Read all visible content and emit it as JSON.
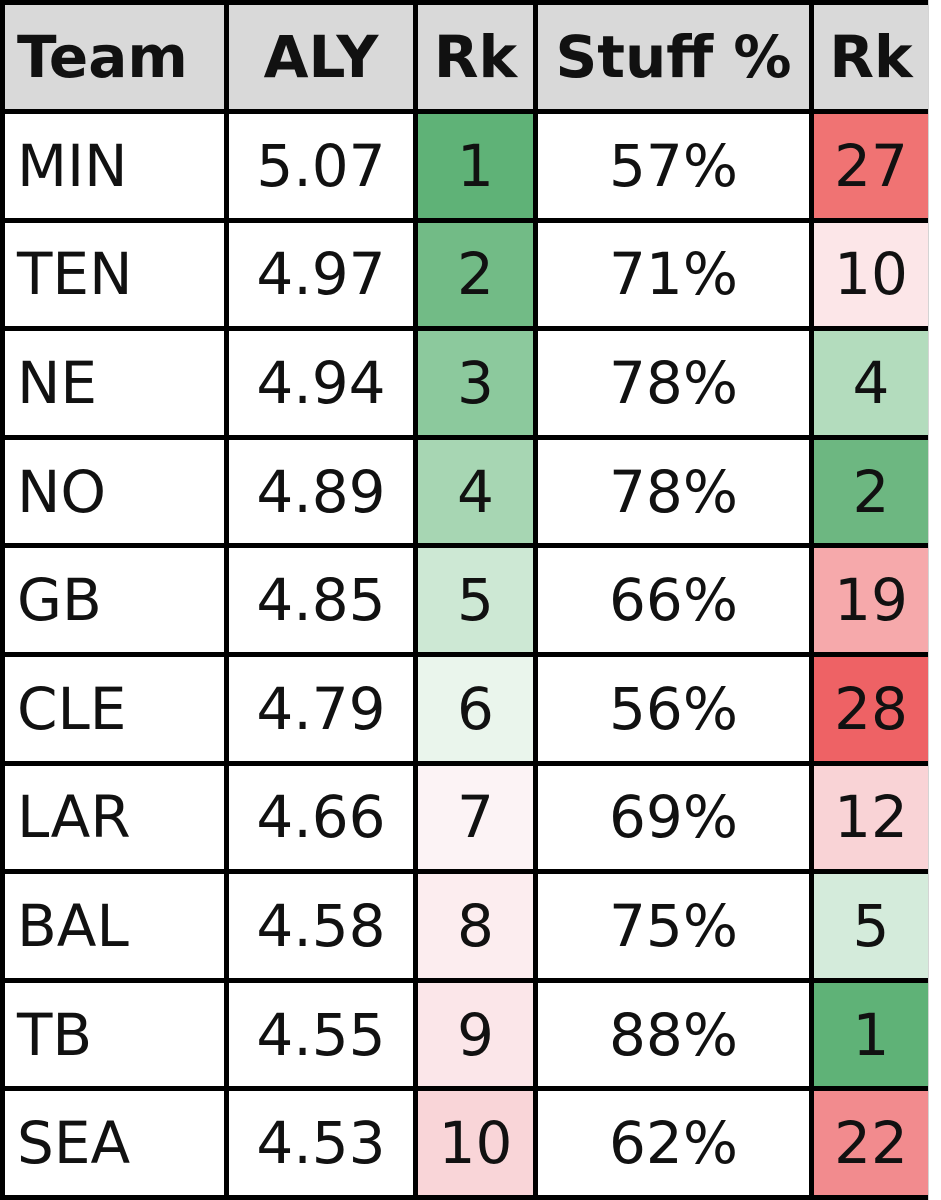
{
  "headers": [
    "Team",
    "ALY",
    "Rk",
    "Stuff %",
    "Rk"
  ],
  "rows": [
    {
      "team": "MIN",
      "aly": "5.07",
      "aly_rk": "1",
      "stuff": "57%",
      "stuff_rk": "27",
      "aly_rk_color": "#5fb277",
      "stuff_rk_color": "#f07373"
    },
    {
      "team": "TEN",
      "aly": "4.97",
      "aly_rk": "2",
      "stuff": "71%",
      "stuff_rk": "10",
      "aly_rk_color": "#72bb86",
      "stuff_rk_color": "#fce6e8"
    },
    {
      "team": "NE",
      "aly": "4.94",
      "aly_rk": "3",
      "stuff": "78%",
      "stuff_rk": "4",
      "aly_rk_color": "#8cc99d",
      "stuff_rk_color": "#b3dcbd"
    },
    {
      "team": "NO",
      "aly": "4.89",
      "aly_rk": "4",
      "stuff": "78%",
      "stuff_rk": "2",
      "aly_rk_color": "#a7d6b3",
      "stuff_rk_color": "#6db781"
    },
    {
      "team": "GB",
      "aly": "4.85",
      "aly_rk": "5",
      "stuff": "66%",
      "stuff_rk": "19",
      "aly_rk_color": "#cde8d4",
      "stuff_rk_color": "#f6a9ab"
    },
    {
      "team": "CLE",
      "aly": "4.79",
      "aly_rk": "6",
      "stuff": "56%",
      "stuff_rk": "28",
      "aly_rk_color": "#eaf5ec",
      "stuff_rk_color": "#ee6265"
    },
    {
      "team": "LAR",
      "aly": "4.66",
      "aly_rk": "7",
      "stuff": "69%",
      "stuff_rk": "12",
      "aly_rk_color": "#fcf3f5",
      "stuff_rk_color": "#f9d3d6"
    },
    {
      "team": "BAL",
      "aly": "4.58",
      "aly_rk": "8",
      "stuff": "75%",
      "stuff_rk": "5",
      "aly_rk_color": "#fcedef",
      "stuff_rk_color": "#d4ebdb"
    },
    {
      "team": "TB",
      "aly": "4.55",
      "aly_rk": "9",
      "stuff": "88%",
      "stuff_rk": "1",
      "aly_rk_color": "#fbe6e9",
      "stuff_rk_color": "#5fb277"
    },
    {
      "team": "SEA",
      "aly": "4.53",
      "aly_rk": "10",
      "stuff": "62%",
      "stuff_rk": "22",
      "aly_rk_color": "#f9d5d8",
      "stuff_rk_color": "#f28b8e"
    }
  ],
  "colors": {
    "header_bg": "#d9d9d9",
    "grid_border": "#000000"
  }
}
